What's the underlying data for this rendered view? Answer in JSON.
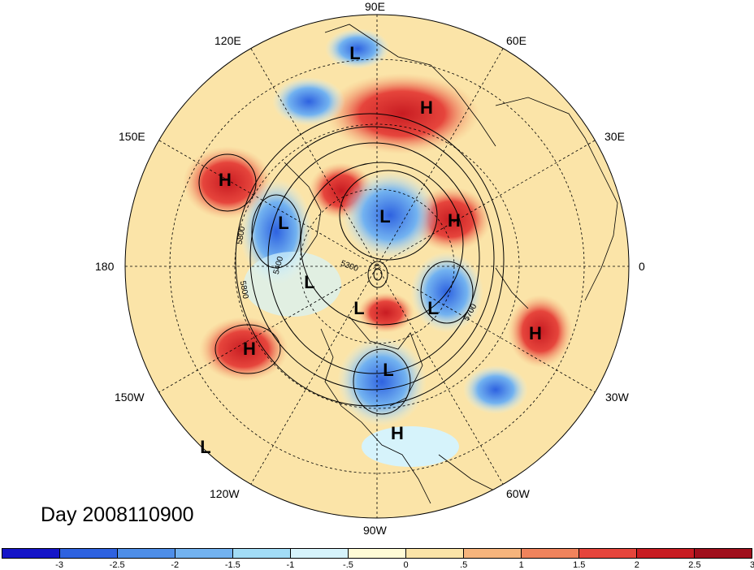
{
  "title": "Day 2008110900",
  "longitude_labels": [
    "90E",
    "60E",
    "30E",
    "0",
    "30W",
    "60W",
    "90W",
    "120W",
    "150W",
    "180",
    "150E",
    "120E"
  ],
  "contour_labels": [
    "5800",
    "5400",
    "5300",
    "5800",
    "5700"
  ],
  "pressure_centers": [
    "L",
    "H",
    "H",
    "L",
    "L",
    "H",
    "L",
    "L",
    "L",
    "L",
    "H",
    "H",
    "L",
    "H",
    "L"
  ],
  "colorbar": {
    "ticks": [
      "-3",
      "-2.5",
      "-2",
      "-1.5",
      "-1",
      "-.5",
      "0",
      ".5",
      "1",
      "1.5",
      "2",
      "2.5",
      "3"
    ],
    "colors": [
      "#1515c8",
      "#2e62e0",
      "#4e8ee8",
      "#72b2f0",
      "#a2dcf6",
      "#d6f3fb",
      "#fffbd6",
      "#fbe4a8",
      "#f6b47c",
      "#f0835c",
      "#e6453c",
      "#c81c22",
      "#a00f1c"
    ]
  }
}
